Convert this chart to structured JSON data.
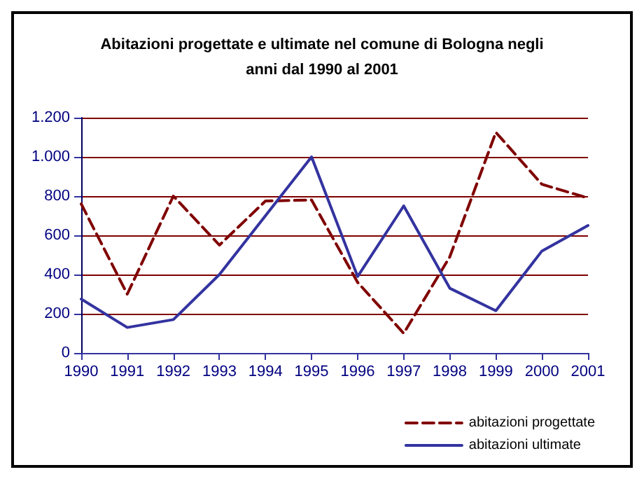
{
  "chart_data": {
    "type": "line",
    "title": "Abitazioni progettate e ultimate nel comune di Bologna negli\nanni dal 1990 al 2001",
    "categories": [
      "1990",
      "1991",
      "1992",
      "1993",
      "1994",
      "1995",
      "1996",
      "1997",
      "1998",
      "1999",
      "2000",
      "2001"
    ],
    "series": [
      {
        "name": "abitazioni progettate",
        "color": "#800000",
        "line_style": "dashed",
        "values": [
          760,
          300,
          800,
          550,
          775,
          780,
          360,
          100,
          490,
          1125,
          860,
          790
        ]
      },
      {
        "name": "abitazioni ultimate",
        "color": "#3333a0",
        "line_style": "solid",
        "values": [
          275,
          130,
          170,
          400,
          700,
          1000,
          390,
          750,
          330,
          215,
          520,
          650
        ]
      }
    ],
    "ylim": [
      0,
      1200
    ],
    "yticks": [
      0,
      200,
      400,
      600,
      800,
      {
        "value": 1000,
        "label": "1.000"
      },
      {
        "value": 1200,
        "label": "1.200"
      }
    ],
    "grid": "y",
    "legend": "bottom right",
    "marker": "none"
  }
}
